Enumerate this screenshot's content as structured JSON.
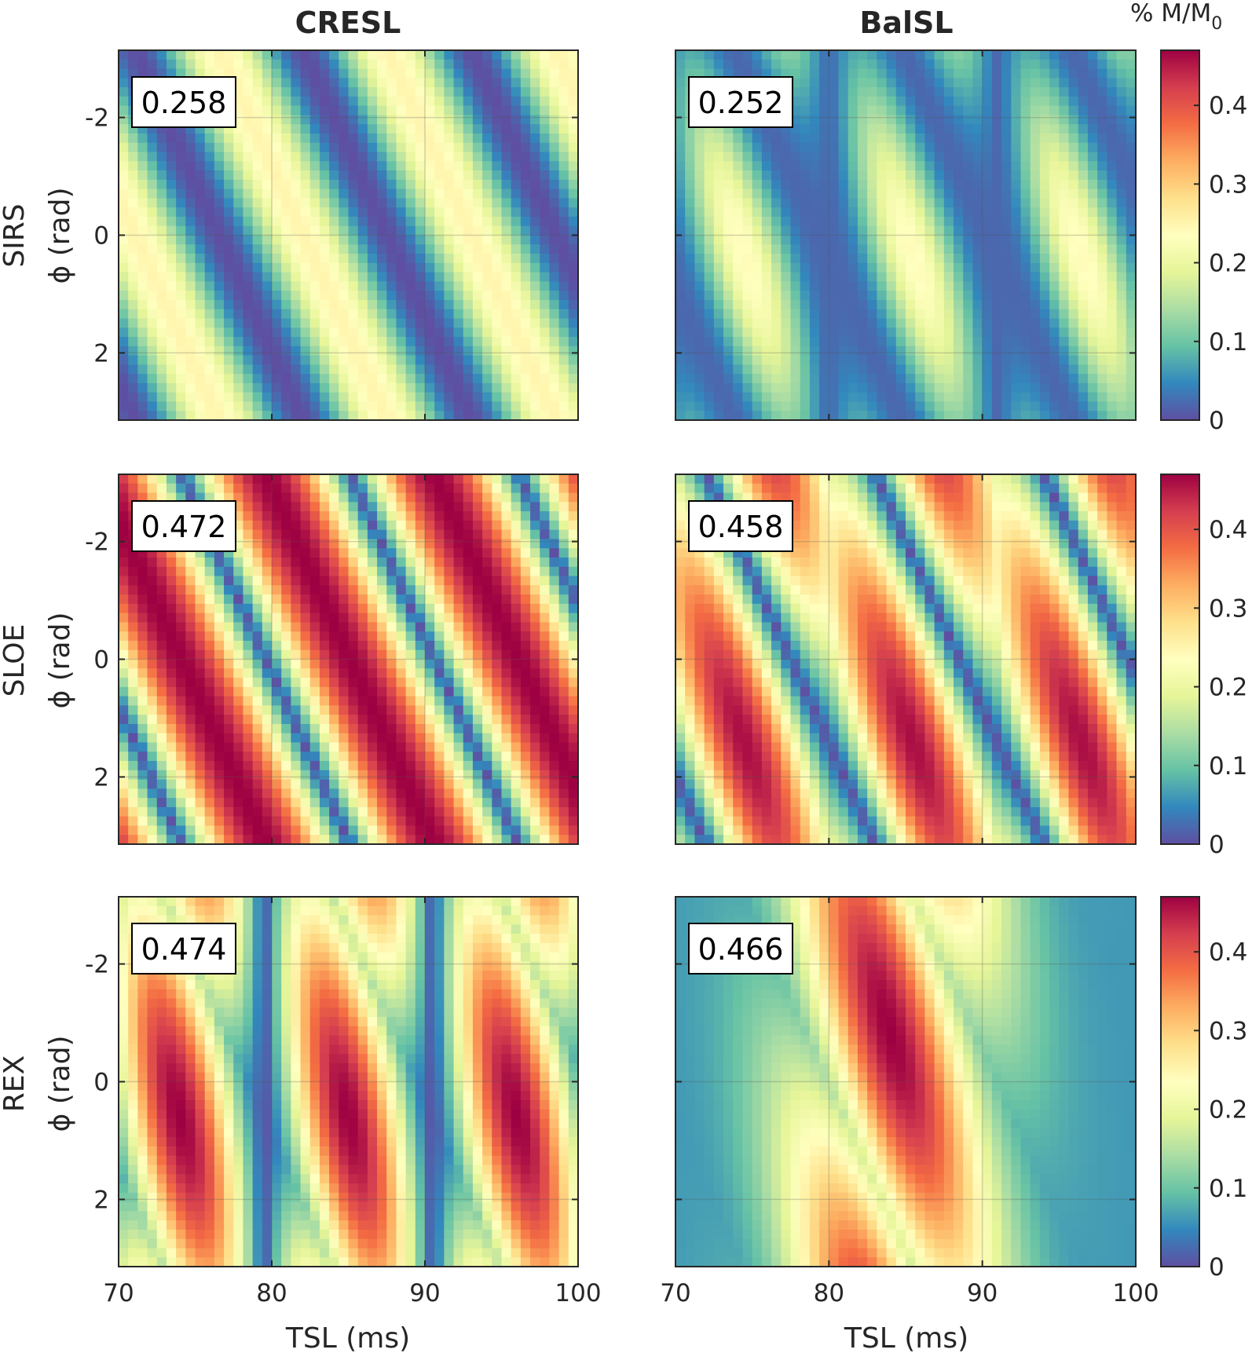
{
  "chart_data": {
    "type": "heatmap",
    "columns": [
      "CRESL",
      "BalSL"
    ],
    "rows": [
      {
        "label": "SIRS",
        "ylabel": "ϕ (rad)"
      },
      {
        "label": "SLOE",
        "ylabel": "ϕ (rad)"
      },
      {
        "label": "REX",
        "ylabel": "ϕ (rad)"
      }
    ],
    "xlabel": "TSL (ms)",
    "xlim": [
      70,
      100
    ],
    "xticks": [
      "70",
      "80",
      "90",
      "100"
    ],
    "ylim": [
      -3.1416,
      3.1416
    ],
    "yticks": [
      "-2",
      "0",
      "2"
    ],
    "colorbar_label_main": "% M/M",
    "colorbar_label_sub": "0",
    "colorbar_ticks": [
      "0",
      "0.1",
      "0.2",
      "0.3",
      "0.4"
    ],
    "clim": [
      0,
      0.47
    ],
    "colormap": "spectral",
    "grid": true,
    "panels": [
      {
        "row": "SIRS",
        "column": "CRESL",
        "max_value": "0.258"
      },
      {
        "row": "SIRS",
        "column": "BalSL",
        "max_value": "0.252"
      },
      {
        "row": "SLOE",
        "column": "CRESL",
        "max_value": "0.472"
      },
      {
        "row": "SLOE",
        "column": "BalSL",
        "max_value": "0.458"
      },
      {
        "row": "REX",
        "column": "CRESL",
        "max_value": "0.474"
      },
      {
        "row": "REX",
        "column": "BalSL",
        "max_value": "0.466"
      }
    ]
  }
}
